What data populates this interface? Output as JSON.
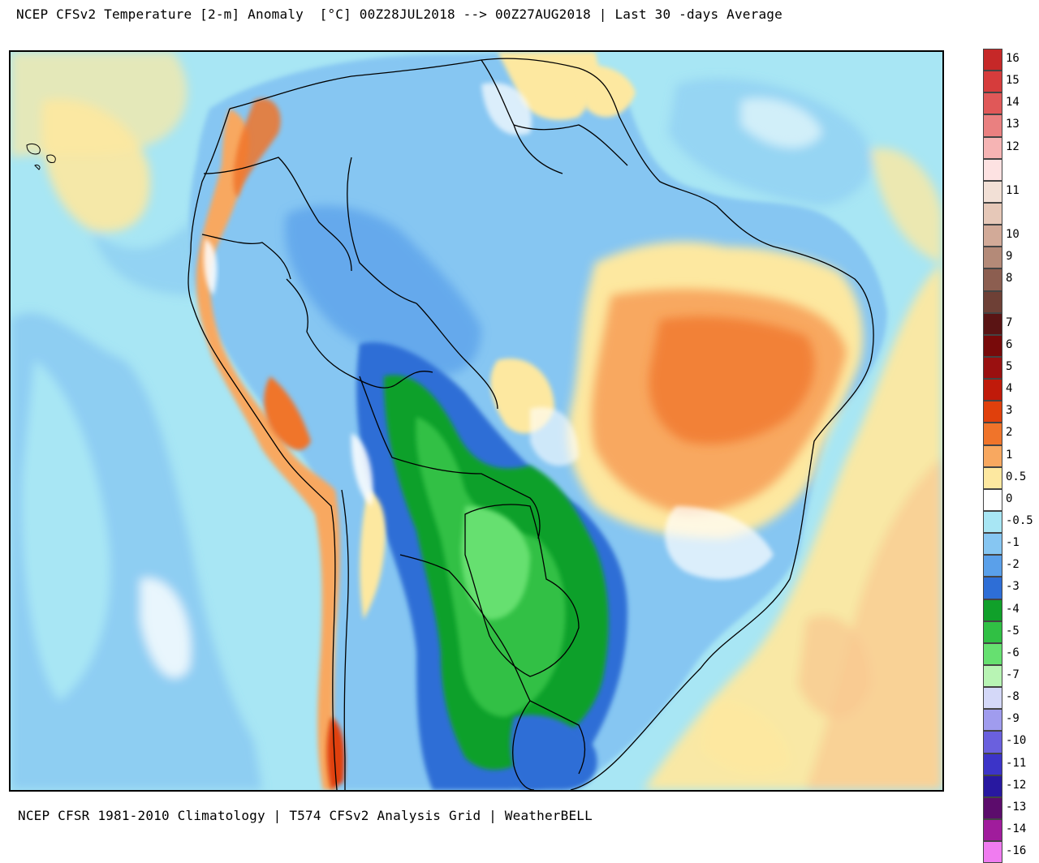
{
  "header": {
    "title": "NCEP CFSv2 Temperature [2-m] Anomaly  [°C] 00Z28JUL2018 --> 00Z27AUG2018 | Last 30 -days Average"
  },
  "footer": {
    "text": "NCEP CFSR 1981-2010 Climatology | T574 CFSv2 Analysis Grid | WeatherBELL"
  },
  "map": {
    "background_color": "#a8e6f4",
    "ocean_color": "#a8e6f4",
    "land_border_color": "#000000"
  },
  "legend": {
    "entries": [
      {
        "label": "16",
        "color": "#c62828"
      },
      {
        "label": "15",
        "color": "#d63c3c"
      },
      {
        "label": "14",
        "color": "#e05858"
      },
      {
        "label": "13",
        "color": "#ea8080"
      },
      {
        "label": "12",
        "color": "#f6b4b4"
      },
      {
        "label": "",
        "color": "#fde2e2"
      },
      {
        "label": "11",
        "color": "#f2e0d6"
      },
      {
        "label": "",
        "color": "#e6c8b8"
      },
      {
        "label": "10",
        "color": "#d2aa98"
      },
      {
        "label": "9",
        "color": "#b48a78"
      },
      {
        "label": "8",
        "color": "#8c5e50"
      },
      {
        "label": "",
        "color": "#6e4036"
      },
      {
        "label": "7",
        "color": "#5a1414"
      },
      {
        "label": "6",
        "color": "#780a0a"
      },
      {
        "label": "5",
        "color": "#9a1010"
      },
      {
        "label": "4",
        "color": "#c01a0a"
      },
      {
        "label": "3",
        "color": "#e0400c"
      },
      {
        "label": "2",
        "color": "#f0742a"
      },
      {
        "label": "1",
        "color": "#f8a860"
      },
      {
        "label": "0.5",
        "color": "#fde8a0"
      },
      {
        "label": "0",
        "color": "#ffffff"
      },
      {
        "label": "-0.5",
        "color": "#a8e6f4"
      },
      {
        "label": "-1",
        "color": "#86c6f2"
      },
      {
        "label": "-2",
        "color": "#5aa0ea"
      },
      {
        "label": "-3",
        "color": "#2e6ed6"
      },
      {
        "label": "-4",
        "color": "#10a02a"
      },
      {
        "label": "-5",
        "color": "#30c044"
      },
      {
        "label": "-6",
        "color": "#66e070"
      },
      {
        "label": "-7",
        "color": "#b8f4b4"
      },
      {
        "label": "-8",
        "color": "#d4d8f8"
      },
      {
        "label": "-9",
        "color": "#a09cee"
      },
      {
        "label": "-10",
        "color": "#6a60de"
      },
      {
        "label": "-11",
        "color": "#3c34c8"
      },
      {
        "label": "-12",
        "color": "#2818a0"
      },
      {
        "label": "-13",
        "color": "#5c0c6c"
      },
      {
        "label": "-14",
        "color": "#a01c9c"
      },
      {
        "label": "-16",
        "color": "#f07cf0"
      }
    ]
  }
}
